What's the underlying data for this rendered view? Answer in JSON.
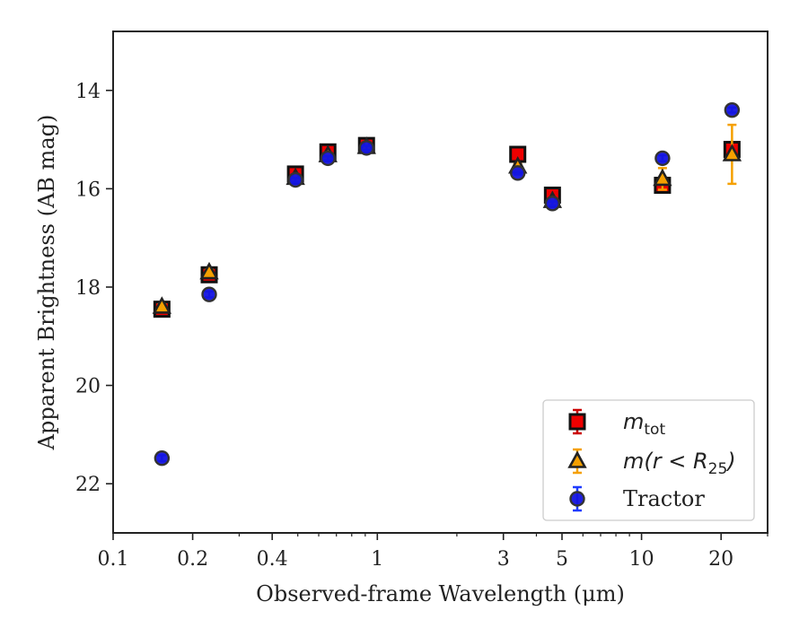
{
  "chart_data": {
    "type": "scatter",
    "title": "",
    "xlabel": "Observed-frame Wavelength (μm)",
    "ylabel": "Apparent Brightness (AB mag)",
    "x_scale": "log",
    "xlim": [
      0.1,
      30
    ],
    "ylim": [
      23,
      12.8
    ],
    "y_inverted": true,
    "x_ticks": [
      0.1,
      0.2,
      0.4,
      1,
      3,
      5,
      10,
      20
    ],
    "x_tick_labels": [
      "0.1",
      "0.2",
      "0.4",
      "1",
      "3",
      "5",
      "10",
      "20"
    ],
    "y_ticks": [
      14,
      16,
      18,
      20,
      22
    ],
    "y_tick_labels": [
      "14",
      "16",
      "18",
      "20",
      "22"
    ],
    "grid": false,
    "legend_position": "lower-right",
    "series": [
      {
        "name": "m_tot",
        "label_parts": {
          "base": "m",
          "sub": "tot"
        },
        "marker": "square",
        "color": "#ee0000",
        "edge_color": "#111111",
        "error_color": "#cc0000",
        "points": [
          {
            "x": 0.153,
            "y": 18.45,
            "yerr": 0.07
          },
          {
            "x": 0.231,
            "y": 17.75,
            "yerr": 0.05
          },
          {
            "x": 0.49,
            "y": 15.7,
            "yerr": 0.05
          },
          {
            "x": 0.65,
            "y": 15.25,
            "yerr": 0.05
          },
          {
            "x": 0.91,
            "y": 15.12,
            "yerr": 0.05
          },
          {
            "x": 3.4,
            "y": 15.3,
            "yerr": 0.03
          },
          {
            "x": 4.6,
            "y": 16.13,
            "yerr": 0.05
          },
          {
            "x": 12.0,
            "y": 15.93,
            "yerr": 0.12
          },
          {
            "x": 22.0,
            "y": 15.2,
            "yerr": 0.12
          }
        ]
      },
      {
        "name": "m(r < R25)",
        "label_parts": {
          "base": "m(r < R",
          "sub": "25",
          "tail": ")"
        },
        "marker": "triangle",
        "color": "#f5a000",
        "edge_color": "#222222",
        "error_color": "#f5a000",
        "points": [
          {
            "x": 0.153,
            "y": 18.4,
            "yerr": 0.05
          },
          {
            "x": 0.231,
            "y": 17.7,
            "yerr": 0.05
          },
          {
            "x": 0.49,
            "y": 15.78,
            "yerr": 0.04
          },
          {
            "x": 0.65,
            "y": 15.32,
            "yerr": 0.04
          },
          {
            "x": 0.91,
            "y": 15.15,
            "yerr": 0.04
          },
          {
            "x": 3.4,
            "y": 15.55,
            "yerr": 0.05
          },
          {
            "x": 4.6,
            "y": 16.25,
            "yerr": 0.06
          },
          {
            "x": 12.0,
            "y": 15.8,
            "yerr": 0.22
          },
          {
            "x": 22.0,
            "y": 15.3,
            "yerr": 0.6
          }
        ]
      },
      {
        "name": "Tractor",
        "marker": "circle",
        "color": "#1414e0",
        "edge_color": "#333333",
        "error_color": "#1f3cff",
        "points": [
          {
            "x": 0.153,
            "y": 21.48,
            "yerr": 0.06
          },
          {
            "x": 0.231,
            "y": 18.15,
            "yerr": 0.06
          },
          {
            "x": 0.49,
            "y": 15.82,
            "yerr": 0.04
          },
          {
            "x": 0.65,
            "y": 15.38,
            "yerr": 0.04
          },
          {
            "x": 0.91,
            "y": 15.17,
            "yerr": 0.04
          },
          {
            "x": 3.4,
            "y": 15.68,
            "yerr": 0.03
          },
          {
            "x": 4.6,
            "y": 16.3,
            "yerr": 0.04
          },
          {
            "x": 12.0,
            "y": 15.38,
            "yerr": 0.06
          },
          {
            "x": 22.0,
            "y": 14.4,
            "yerr": 0.05
          }
        ]
      }
    ]
  }
}
